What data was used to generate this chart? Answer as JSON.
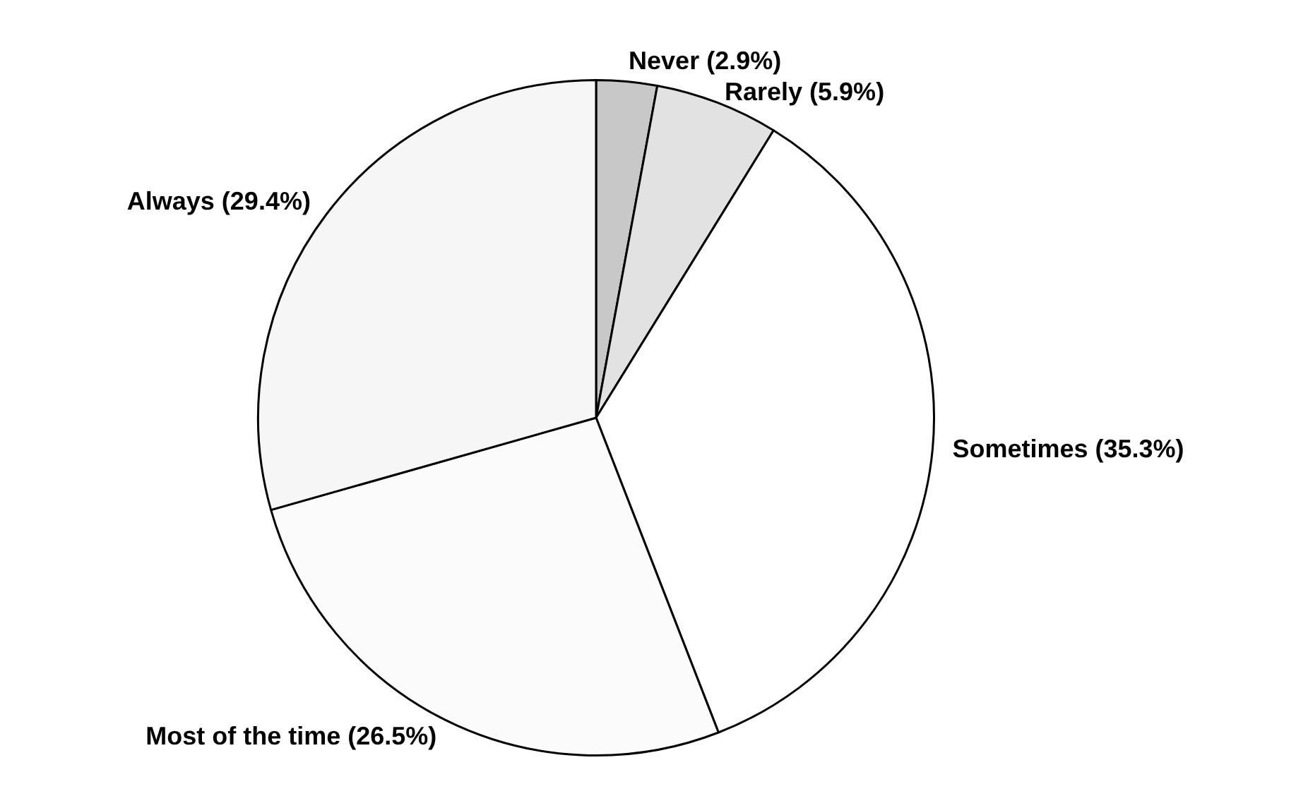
{
  "chart_data": {
    "type": "pie",
    "categories": [
      "Never (2.9%)",
      "Rarely (5.9%)",
      "Sometimes (35.3%)",
      "Most of the time (26.5%)",
      "Always (29.4%)"
    ],
    "values": [
      2.9,
      5.9,
      35.3,
      26.5,
      29.4
    ],
    "colors": [
      "#c8c8c8",
      "#e2e2e2",
      "#ffffff",
      "#fbfbfb",
      "#f6f6f6"
    ],
    "legend": false
  }
}
